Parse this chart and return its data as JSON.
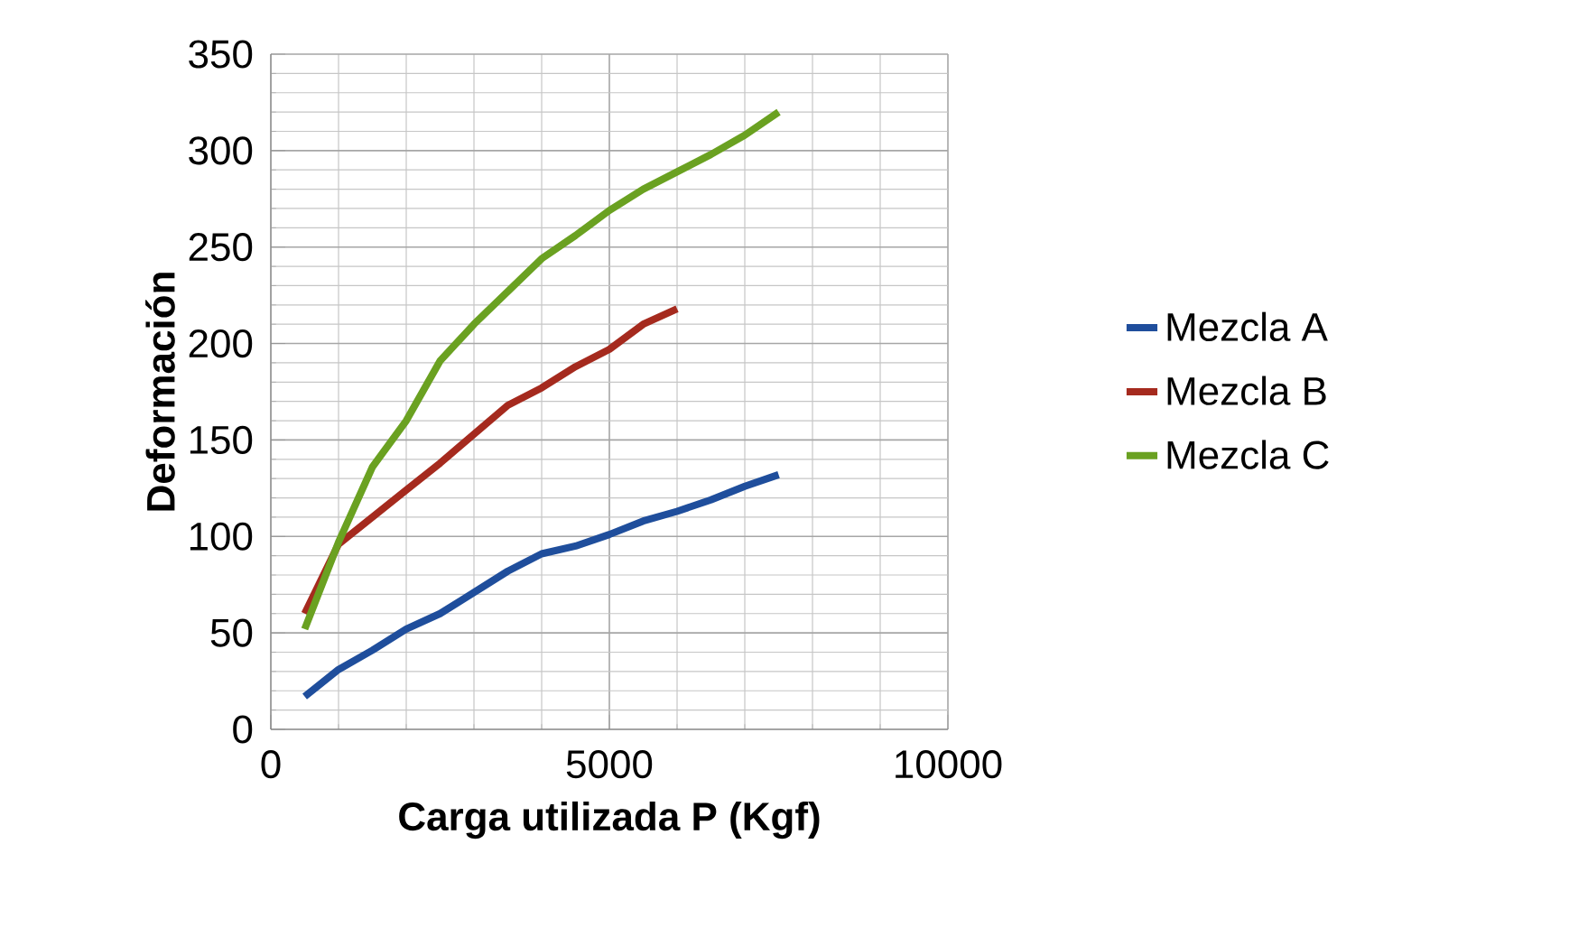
{
  "chart_data": {
    "type": "line",
    "xlabel": "Carga utilizada P (Kgf)",
    "ylabel": "Deformación",
    "xlim": [
      0,
      10000
    ],
    "ylim": [
      0,
      350
    ],
    "xticks": [
      0,
      5000,
      10000
    ],
    "yticks": [
      0,
      50,
      100,
      150,
      200,
      250,
      300,
      350
    ],
    "grid": true,
    "legend": "right",
    "marker": "none",
    "line_style": "solid",
    "series": [
      {
        "name": "Mezcla A",
        "color": "#1f4e9c",
        "x": [
          500,
          1000,
          1500,
          2000,
          2500,
          3000,
          3500,
          4000,
          4500,
          5000,
          5500,
          6000,
          6500,
          7000,
          7500
        ],
        "values": [
          17,
          31,
          41,
          52,
          60,
          71,
          82,
          91,
          95,
          101,
          108,
          113,
          119,
          126,
          132
        ]
      },
      {
        "name": "Mezcla B",
        "color": "#a52a1e",
        "x": [
          500,
          1000,
          1500,
          2000,
          2500,
          3000,
          3500,
          4000,
          4500,
          5000,
          5500,
          6000
        ],
        "values": [
          60,
          96,
          110,
          124,
          138,
          153,
          168,
          177,
          188,
          197,
          210,
          218
        ]
      },
      {
        "name": "Mezcla C",
        "color": "#6aa121",
        "x": [
          500,
          1000,
          1500,
          2000,
          2500,
          3000,
          3500,
          4000,
          4500,
          5000,
          5500,
          6000,
          6500,
          7000,
          7500
        ],
        "values": [
          52,
          97,
          136,
          160,
          191,
          210,
          227,
          244,
          256,
          269,
          280,
          289,
          298,
          308,
          320
        ]
      }
    ]
  }
}
